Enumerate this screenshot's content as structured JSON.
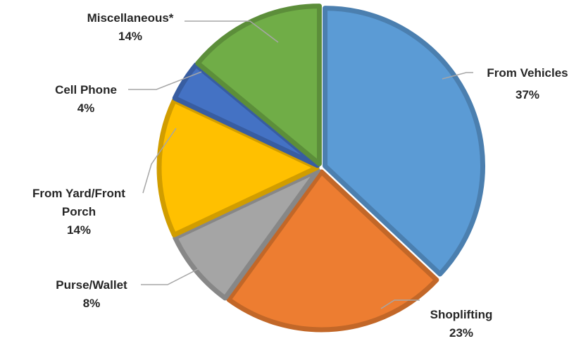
{
  "chart_data": {
    "type": "pie",
    "title": "",
    "slices": [
      {
        "label": "From Vehicles",
        "value": 37,
        "value_label": "37%",
        "color": "#5b9bd5"
      },
      {
        "label": "Shoplifting",
        "value": 23,
        "value_label": "23%",
        "color": "#ed7d31"
      },
      {
        "label": "Purse/Wallet",
        "value": 8,
        "value_label": "8%",
        "color": "#a5a5a5"
      },
      {
        "label": "From Yard/Front Porch",
        "value": 14,
        "value_label": "14%",
        "color": "#ffc000"
      },
      {
        "label": "Cell Phone",
        "value": 4,
        "value_label": "4%",
        "color": "#4472c4"
      },
      {
        "label": "Miscellaneous*",
        "value": 14,
        "value_label": "14%",
        "color": "#70ad47"
      }
    ],
    "start": "12 o'clock",
    "direction": "clockwise",
    "legend": "none",
    "data_labels": "outside with leader lines"
  }
}
